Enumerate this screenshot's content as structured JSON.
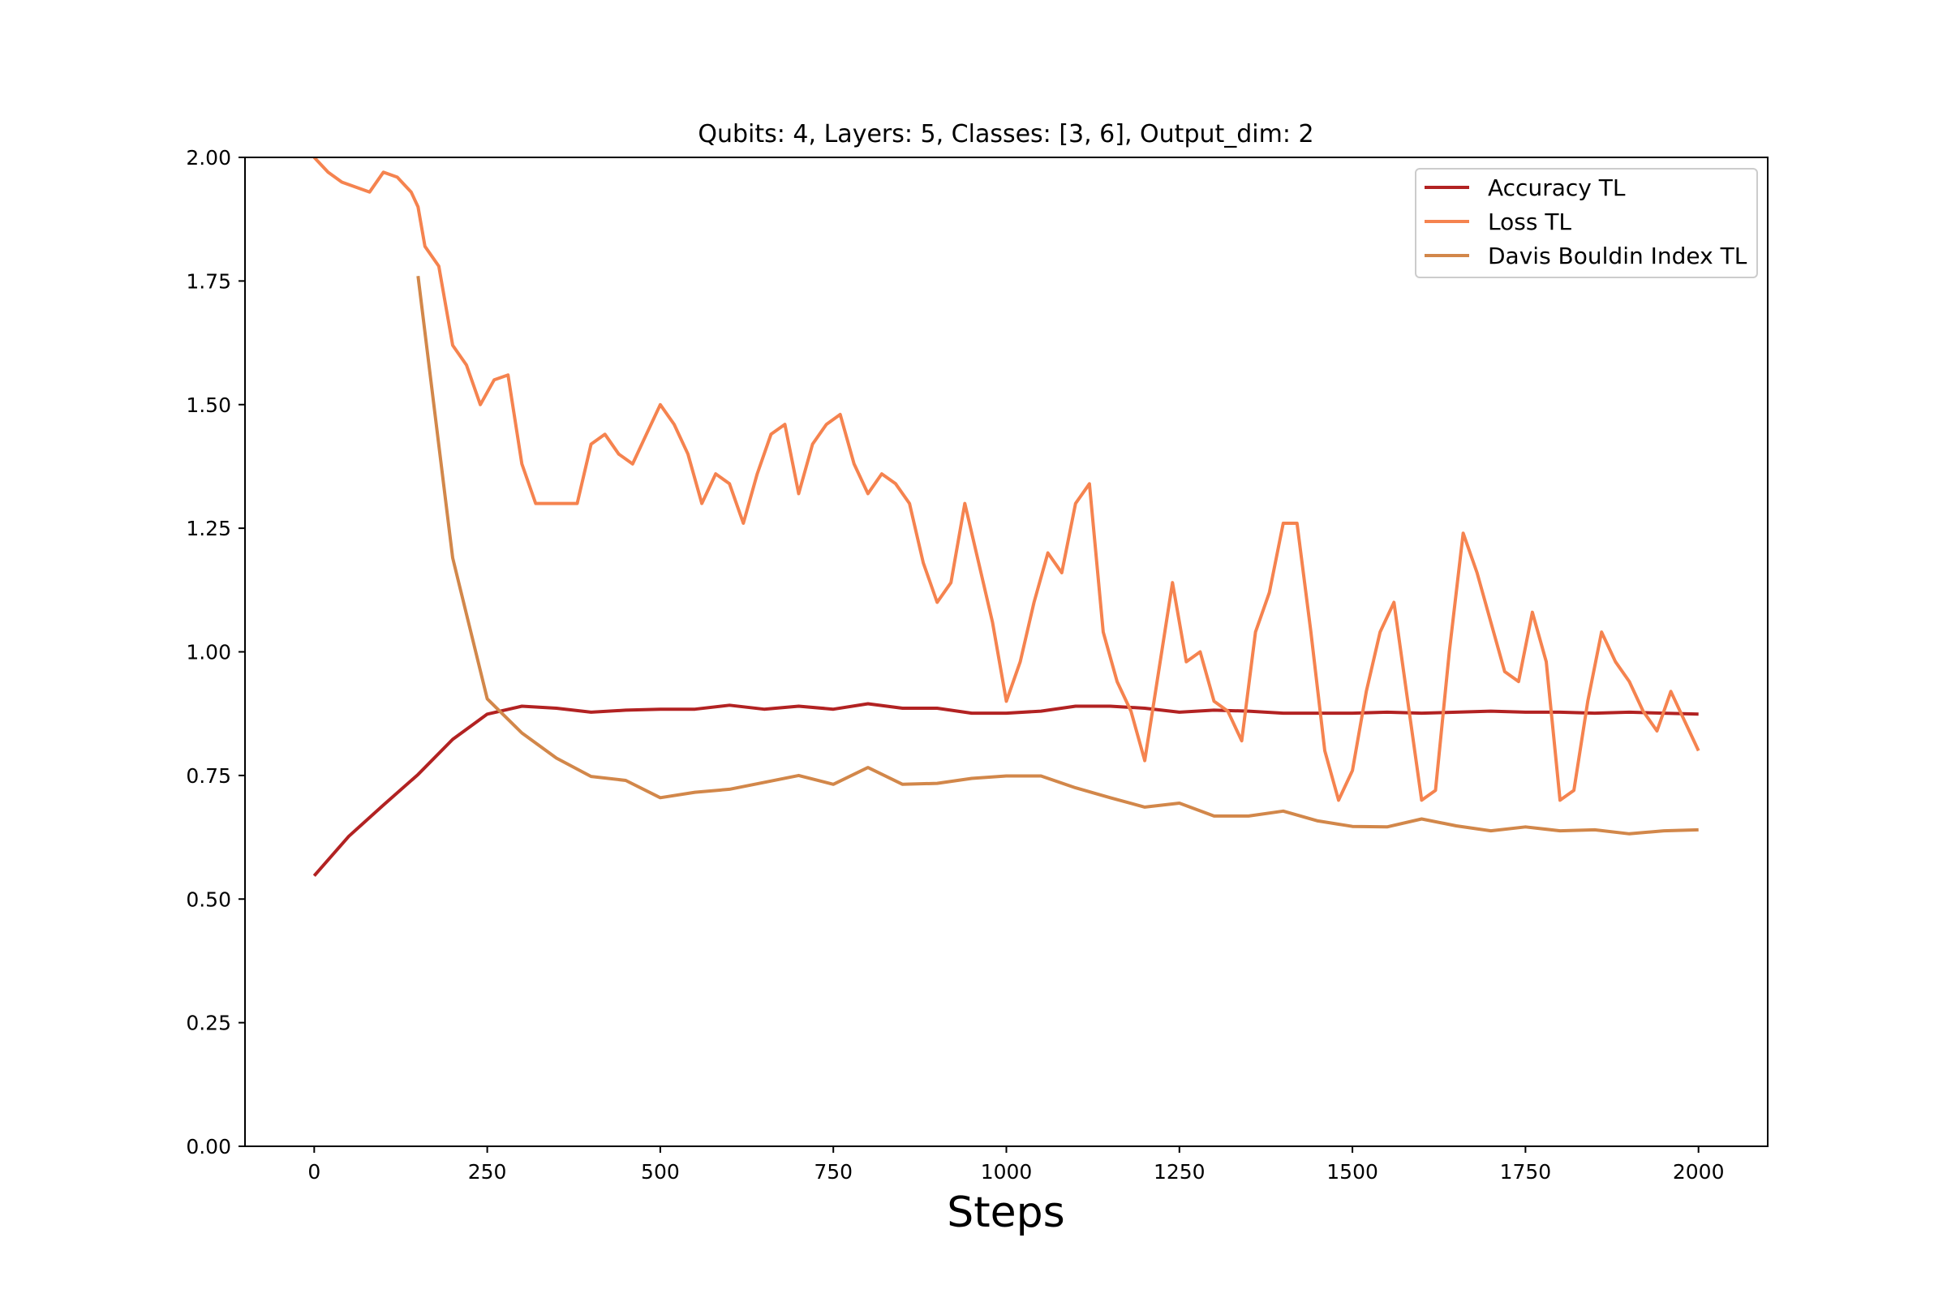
{
  "chart_data": {
    "type": "line",
    "title": "Qubits: 4, Layers: 5, Classes: [3, 6], Output_dim: 2",
    "xlabel": "Steps",
    "ylabel": "",
    "xlim": [
      -100,
      2100
    ],
    "ylim": [
      0,
      2
    ],
    "xticks": [
      0,
      250,
      500,
      750,
      1000,
      1250,
      1500,
      1750,
      2000
    ],
    "xtick_labels": [
      "0",
      "250",
      "500",
      "750",
      "1000",
      "1250",
      "1500",
      "1750",
      "2000"
    ],
    "yticks": [
      0,
      0.25,
      0.5,
      0.75,
      1.0,
      1.25,
      1.5,
      1.75,
      2.0
    ],
    "ytick_labels": [
      "0.00",
      "0.25",
      "0.50",
      "0.75",
      "1.00",
      "1.25",
      "1.50",
      "1.75",
      "2.00"
    ],
    "grid": false,
    "legend_position": "top-right",
    "series": [
      {
        "name": "Accuracy TL",
        "color": "#b22222",
        "x": [
          0,
          50,
          100,
          150,
          200,
          250,
          300,
          350,
          400,
          450,
          500,
          550,
          600,
          650,
          700,
          750,
          800,
          850,
          900,
          950,
          1000,
          1050,
          1100,
          1150,
          1200,
          1250,
          1300,
          1350,
          1400,
          1450,
          1500,
          1550,
          1600,
          1650,
          1700,
          1750,
          1800,
          1850,
          1900,
          1950,
          2000
        ],
        "y": [
          0.547,
          0.627,
          0.69,
          0.752,
          0.823,
          0.874,
          0.89,
          0.886,
          0.878,
          0.882,
          0.884,
          0.884,
          0.892,
          0.884,
          0.89,
          0.884,
          0.895,
          0.886,
          0.886,
          0.876,
          0.876,
          0.88,
          0.89,
          0.89,
          0.886,
          0.878,
          0.882,
          0.88,
          0.876,
          0.876,
          0.876,
          0.878,
          0.876,
          0.878,
          0.88,
          0.878,
          0.878,
          0.876,
          0.878,
          0.876,
          0.874
        ]
      },
      {
        "name": "Loss TL",
        "color": "#f5834f",
        "x": [
          0,
          20,
          40,
          60,
          80,
          100,
          120,
          140,
          150,
          160,
          180,
          200,
          220,
          240,
          260,
          280,
          300,
          320,
          340,
          360,
          380,
          400,
          420,
          440,
          460,
          480,
          500,
          520,
          540,
          560,
          580,
          600,
          620,
          640,
          660,
          680,
          700,
          720,
          740,
          760,
          780,
          800,
          820,
          840,
          860,
          880,
          900,
          920,
          940,
          960,
          980,
          1000,
          1020,
          1040,
          1060,
          1080,
          1100,
          1120,
          1140,
          1160,
          1180,
          1200,
          1220,
          1240,
          1260,
          1280,
          1300,
          1320,
          1340,
          1360,
          1380,
          1400,
          1420,
          1440,
          1460,
          1480,
          1500,
          1520,
          1540,
          1560,
          1580,
          1600,
          1620,
          1640,
          1660,
          1680,
          1700,
          1720,
          1740,
          1760,
          1780,
          1800,
          1820,
          1840,
          1860,
          1880,
          1900,
          1920,
          1940,
          1960,
          1980,
          2000
        ],
        "y": [
          2.0,
          1.97,
          1.95,
          1.94,
          1.93,
          1.97,
          1.96,
          1.93,
          1.9,
          1.82,
          1.78,
          1.62,
          1.58,
          1.5,
          1.55,
          1.56,
          1.38,
          1.3,
          1.3,
          1.3,
          1.3,
          1.42,
          1.44,
          1.4,
          1.38,
          1.44,
          1.5,
          1.46,
          1.4,
          1.3,
          1.36,
          1.34,
          1.26,
          1.36,
          1.44,
          1.46,
          1.32,
          1.42,
          1.46,
          1.48,
          1.38,
          1.32,
          1.36,
          1.34,
          1.3,
          1.18,
          1.1,
          1.14,
          1.3,
          1.18,
          1.06,
          0.9,
          0.98,
          1.1,
          1.2,
          1.16,
          1.3,
          1.34,
          1.04,
          0.94,
          0.88,
          0.78,
          0.96,
          1.14,
          0.98,
          1.0,
          0.9,
          0.88,
          0.82,
          1.04,
          1.12,
          1.26,
          1.26,
          1.04,
          0.8,
          0.7,
          0.76,
          0.92,
          1.04,
          1.1,
          0.9,
          0.7,
          0.72,
          1.0,
          1.24,
          1.16,
          1.06,
          0.96,
          0.94,
          1.08,
          0.98,
          0.7,
          0.72,
          0.9,
          1.04,
          0.98,
          0.94,
          0.88,
          0.84,
          0.92,
          0.86,
          0.8
        ]
      },
      {
        "name": "Davis Bouldin Index TL",
        "color": "#d2874a",
        "x": [
          150,
          200,
          250,
          300,
          350,
          400,
          450,
          500,
          550,
          600,
          650,
          700,
          750,
          800,
          850,
          900,
          950,
          1000,
          1050,
          1100,
          1150,
          1200,
          1250,
          1300,
          1350,
          1400,
          1450,
          1500,
          1550,
          1600,
          1650,
          1700,
          1750,
          1800,
          1850,
          1900,
          1950,
          2000
        ],
        "y": [
          1.76,
          1.19,
          0.905,
          0.836,
          0.785,
          0.748,
          0.74,
          0.705,
          0.716,
          0.722,
          0.736,
          0.75,
          0.732,
          0.766,
          0.732,
          0.734,
          0.744,
          0.749,
          0.749,
          0.725,
          0.705,
          0.686,
          0.694,
          0.668,
          0.668,
          0.678,
          0.658,
          0.647,
          0.646,
          0.662,
          0.648,
          0.638,
          0.646,
          0.638,
          0.64,
          0.632,
          0.638,
          0.64
        ]
      }
    ]
  }
}
